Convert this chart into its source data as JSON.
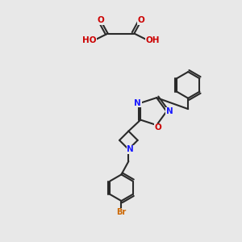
{
  "bg_color": "#e8e8e8",
  "title": "",
  "figsize": [
    3.0,
    3.0
  ],
  "dpi": 100,
  "bond_color": "#2a2a2a",
  "bond_width": 1.5,
  "atom_colors": {
    "C": "#2a2a2a",
    "N": "#1a1aff",
    "O": "#cc0000",
    "Br": "#cc6600",
    "H": "#2a2a2a"
  },
  "font_size": 7.5,
  "font_size_small": 6.5
}
